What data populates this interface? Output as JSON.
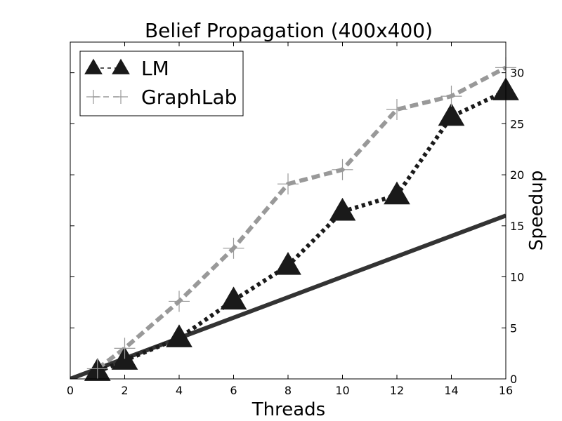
{
  "chart_data": {
    "type": "line",
    "title": "Belief Propagation (400x400)",
    "xlabel": "Threads",
    "ylabel": "Speedup",
    "xlim": [
      0,
      16
    ],
    "ylim": [
      0,
      33
    ],
    "xticks": [
      0,
      2,
      4,
      6,
      8,
      10,
      12,
      14,
      16
    ],
    "yticks": [
      0,
      5,
      10,
      15,
      20,
      25,
      30
    ],
    "y_axis_side": "right",
    "grid": false,
    "legend_position": "top-left",
    "series": [
      {
        "name": "LM",
        "style": "dotted",
        "marker": "triangle",
        "color": "#1a1a1a",
        "x": [
          1,
          2,
          4,
          6,
          8,
          10,
          12,
          14,
          16
        ],
        "y": [
          0.7,
          1.8,
          4.0,
          7.7,
          11.1,
          16.4,
          18.0,
          25.7,
          28.2
        ]
      },
      {
        "name": "GraphLab",
        "style": "dashed",
        "marker": "plus",
        "color": "#999999",
        "x": [
          1,
          2,
          4,
          6,
          8,
          10,
          12,
          14,
          16
        ],
        "y": [
          1.0,
          3.0,
          7.6,
          12.8,
          19.1,
          20.5,
          26.4,
          27.7,
          30.5
        ]
      }
    ],
    "reference_line": {
      "color": "#333333",
      "x": [
        0,
        16
      ],
      "y": [
        0,
        16
      ]
    }
  }
}
